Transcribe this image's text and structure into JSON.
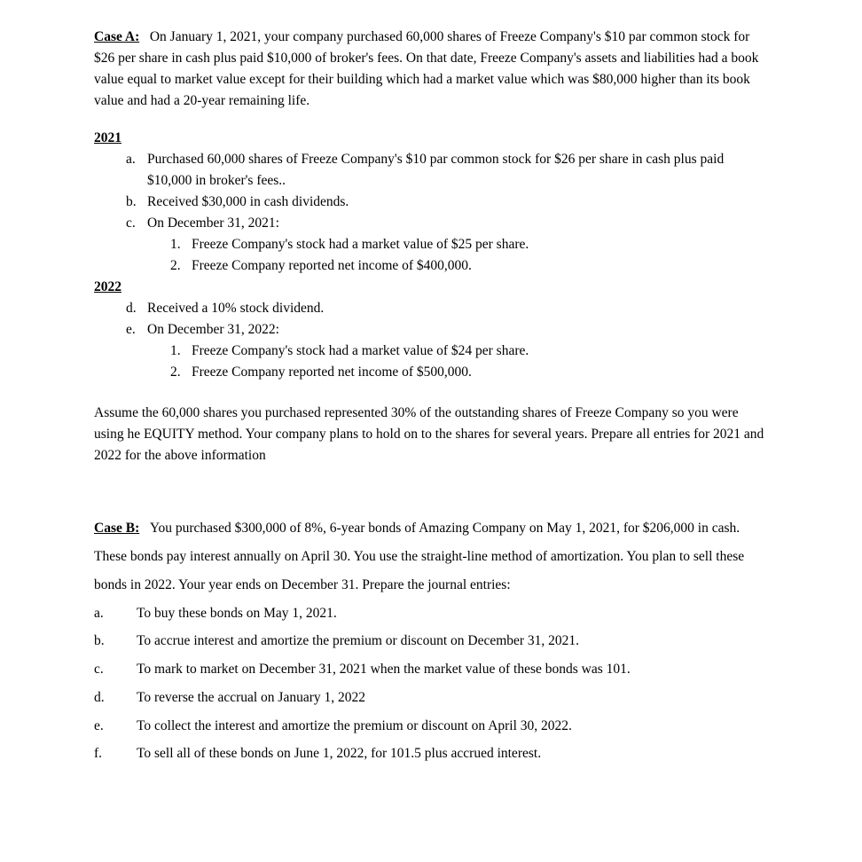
{
  "caseA": {
    "label": "Case A:",
    "intro": "On January 1, 2021, your company purchased 60,000 shares of Freeze Company's $10 par common stock for $26 per share in cash plus paid $10,000 of broker's fees.  On that date, Freeze Company's assets and liabilities had a book value equal to market value except for their building which had a market value which was $80,000 higher than its book value and had a 20-year remaining life.",
    "year2021": "2021",
    "items2021": {
      "a": {
        "m": "a.",
        "t": "Purchased 60,000 shares of Freeze Company's $10 par common stock for $26 per share in cash plus paid $10,000 in broker's fees.."
      },
      "b": {
        "m": "b.",
        "t": "Received $30,000 in cash dividends."
      },
      "c": {
        "m": "c.",
        "t": "On December 31, 2021:",
        "sub": {
          "1": {
            "m": "1.",
            "t": "Freeze Company's stock had a market value of $25 per share."
          },
          "2": {
            "m": "2.",
            "t": "Freeze Company reported net income of $400,000."
          }
        }
      }
    },
    "year2022": "2022",
    "items2022": {
      "d": {
        "m": "d.",
        "t": "Received a 10% stock dividend."
      },
      "e": {
        "m": "e.",
        "t": "On December 31, 2022:",
        "sub": {
          "1": {
            "m": "1.",
            "t": "Freeze Company's stock had a market value of $24 per share."
          },
          "2": {
            "m": "2.",
            "t": "Freeze Company reported net income of $500,000."
          }
        }
      }
    },
    "assume": "Assume the 60,000 shares you purchased represented 30% of the outstanding shares of Freeze Company so you were using he EQUITY method.  Your company plans to hold on to the shares for several years.  Prepare all entries for 2021 and 2022 for the above information"
  },
  "caseB": {
    "label": "Case B:",
    "intro": "You purchased $300,000 of 8%, 6-year bonds of Amazing Company on May 1, 2021, for $206,000 in cash.  These bonds pay interest annually on April 30. You use the straight-line method of amortization.  You plan to sell these bonds in 2022.  Your year ends on December 31.  Prepare the journal entries:",
    "items": {
      "a": {
        "m": "a.",
        "t": "To buy these bonds on May 1, 2021."
      },
      "b": {
        "m": "b.",
        "t": "To accrue interest and amortize the premium or discount on December 31, 2021."
      },
      "c": {
        "m": "c.",
        "t": "To mark to market on December 31, 2021 when the market value of these bonds was 101."
      },
      "d": {
        "m": "d.",
        "t": "To reverse the accrual on January 1, 2022"
      },
      "e": {
        "m": "e.",
        "t": "To collect the interest and amortize the premium or discount on April 30, 2022."
      },
      "f": {
        "m": "f.",
        "t": "To sell all of these bonds on June 1, 2022, for 101.5 plus accrued interest."
      }
    }
  }
}
